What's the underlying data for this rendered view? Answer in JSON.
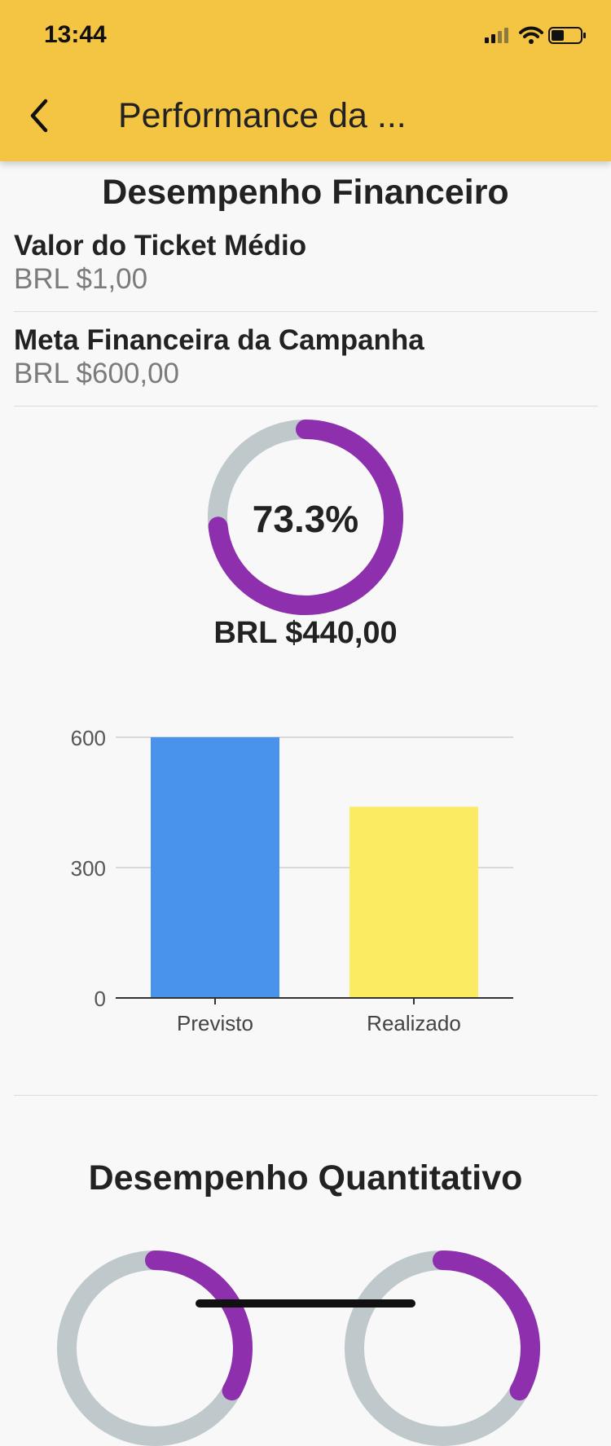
{
  "status_bar": {
    "time": "13:44"
  },
  "app_bar": {
    "title": "Performance da ..."
  },
  "financial": {
    "section_title": "Desempenho Financeiro",
    "ticket": {
      "label": "Valor do Ticket Médio",
      "value": "BRL $1,00"
    },
    "goal": {
      "label": "Meta Financeira da Campanha",
      "value": "BRL $600,00"
    },
    "progress": {
      "percent_label": "73.3%",
      "fraction": 0.733,
      "amount": "BRL $440,00"
    }
  },
  "chart_data": {
    "type": "bar",
    "categories": [
      "Previsto",
      "Realizado"
    ],
    "values": [
      600,
      440
    ],
    "colors": [
      "#4a93ec",
      "#fbeb62"
    ],
    "y_ticks": [
      "0",
      "300",
      "600"
    ],
    "ylim": [
      0,
      600
    ],
    "title": "",
    "xlabel": "",
    "ylabel": ""
  },
  "quantitative": {
    "section_title": "Desempenho Quantitativo"
  },
  "colors": {
    "accent": "#f4c443",
    "ring": "#8e2fae",
    "ring_track": "#bfc9cc"
  }
}
